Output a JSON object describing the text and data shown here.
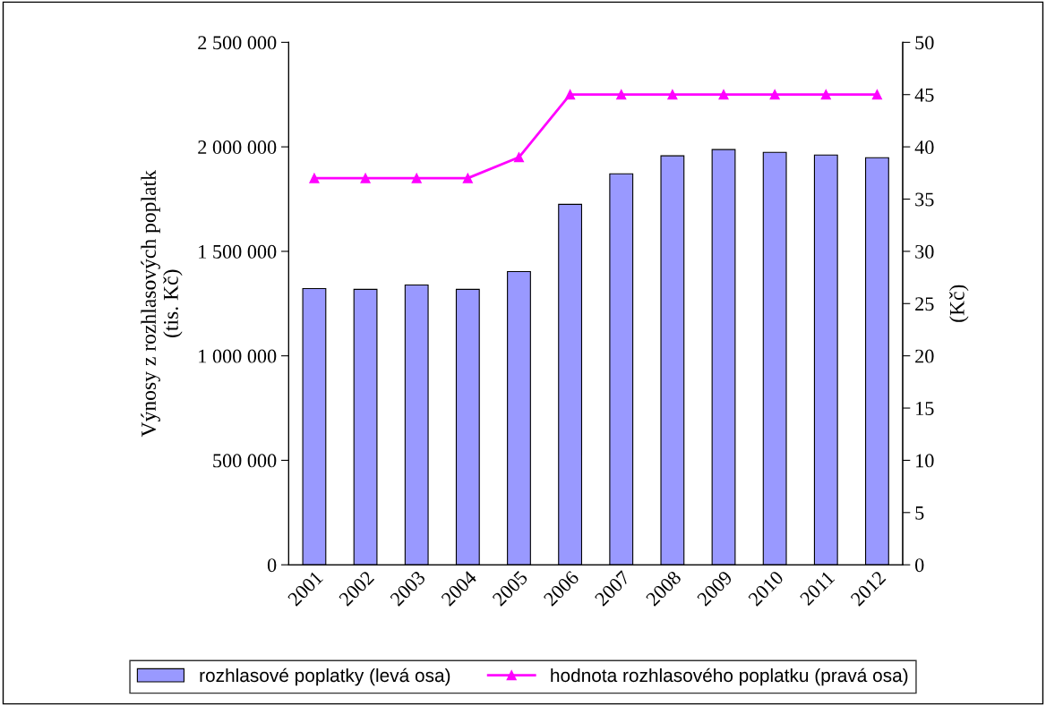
{
  "chart_data": {
    "type": "bar",
    "categories": [
      "2001",
      "2002",
      "2003",
      "2004",
      "2005",
      "2006",
      "2007",
      "2008",
      "2009",
      "2010",
      "2011",
      "2012"
    ],
    "ylabel": "Výnosy z rozhlasových poplatk\n(tis. Kč)",
    "y2label": "(Kč)",
    "ylim": [
      0,
      2500000
    ],
    "yticks": [
      {
        "value": 0,
        "label": "0"
      },
      {
        "value": 500000,
        "label": "500 000"
      },
      {
        "value": 1000000,
        "label": "1 000 000"
      },
      {
        "value": 1500000,
        "label": "1 500 000"
      },
      {
        "value": 2000000,
        "label": "2 000 000"
      },
      {
        "value": 2500000,
        "label": "2 500 000"
      }
    ],
    "y2lim": [
      0,
      50
    ],
    "y2ticks": [
      0,
      5,
      10,
      15,
      20,
      25,
      30,
      35,
      40,
      45,
      50
    ],
    "grid": false,
    "legend": "bottom",
    "series": [
      {
        "name": "rozhlasové poplatky (levá osa)",
        "color": "#9999ff",
        "values": [
          1322000,
          1318000,
          1339000,
          1318000,
          1403000,
          1725000,
          1871000,
          1957000,
          1987000,
          1974000,
          1961000,
          1948000
        ]
      },
      {
        "name": "hodnota rozhlasového poplatku (pravá osa)",
        "type": "line",
        "axis": "y2",
        "color": "#ff00ff",
        "marker": "triangle",
        "values": [
          37,
          37,
          37,
          37,
          39,
          45,
          45,
          45,
          45,
          45,
          45,
          45
        ]
      }
    ]
  }
}
